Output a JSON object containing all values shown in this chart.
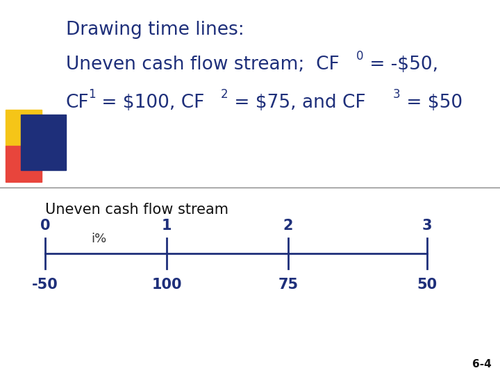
{
  "title_line1": "Drawing time lines:",
  "subtitle_label": "Uneven cash flow stream",
  "period_labels": [
    "0",
    "1",
    "2",
    "3"
  ],
  "cash_flows": [
    "-50",
    "100",
    "75",
    "50"
  ],
  "rate_label": "i%",
  "timeline_color": "#1e2f7a",
  "title_color": "#1e2f7a",
  "cf_text_color": "#1e2f7a",
  "subtitle_color": "#111111",
  "bg_color": "#ffffff",
  "slide_number": "6-4",
  "sq_yellow": "#f5c518",
  "sq_red": "#e8453c",
  "sq_blue": "#1e2f7a",
  "divider_color": "#888888",
  "timeline_lw": 2.0,
  "tick_color": "#1e2f7a"
}
